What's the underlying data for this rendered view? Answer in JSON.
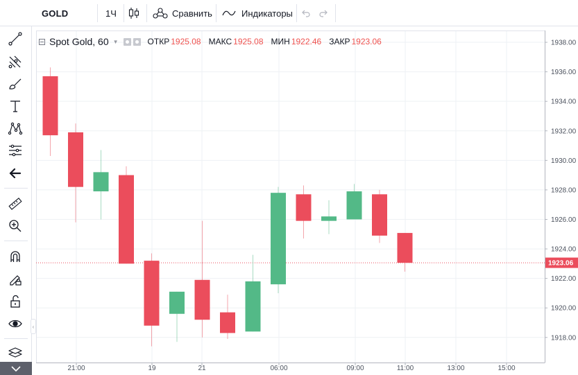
{
  "toolbar": {
    "symbol": "GOLD",
    "interval": "1Ч",
    "compare_label": "Сравнить",
    "indicators_label": "Индикаторы",
    "undo_icon": "undo-icon",
    "redo_icon": "redo-icon"
  },
  "left_tools": [
    {
      "name": "crosshair-icon"
    },
    {
      "name": "trend-line-icon"
    },
    {
      "name": "pitchfork-icon"
    },
    {
      "name": "brush-icon"
    },
    {
      "name": "text-icon"
    },
    {
      "name": "pattern-icon"
    },
    {
      "name": "prediction-icon"
    },
    {
      "name": "back-arrow-icon"
    },
    {
      "name": "ruler-icon"
    },
    {
      "name": "zoom-in-icon"
    },
    {
      "name": "magnet-icon"
    },
    {
      "name": "lock-drawing-icon"
    },
    {
      "name": "unlock-icon"
    },
    {
      "name": "eye-icon"
    },
    {
      "name": "layers-icon"
    }
  ],
  "legend": {
    "title": "Spot Gold, 60",
    "open_label": "ОТКР",
    "open_value": "1925.08",
    "high_label": "МАКС",
    "high_value": "1925.08",
    "low_label": "МИН",
    "low_value": "1922.46",
    "close_label": "ЗАКР",
    "close_value": "1923.06"
  },
  "colors": {
    "up": "#53b987",
    "down": "#eb4d5c",
    "price_line": "#eb4d5c",
    "grid": "#eef1f4",
    "axis_text": "#4c525e"
  },
  "chart_data": {
    "type": "candlestick",
    "symbol": "Spot Gold",
    "interval": "60",
    "x_tick_labels": [
      "21:00",
      "19",
      "21",
      "06:00",
      "09:00",
      "11:00",
      "13:00",
      "15:00"
    ],
    "y_tick_labels": [
      "1918.00",
      "1920.00",
      "1922.00",
      "1924.00",
      "1926.00",
      "1928.00",
      "1930.00",
      "1932.00",
      "1934.00",
      "1936.00",
      "1938.00"
    ],
    "ylim": [
      1916.3,
      1938.8
    ],
    "last_price_label": "1923.06",
    "last_price": 1923.06,
    "candles": [
      {
        "o": 1935.7,
        "h": 1936.3,
        "l": 1930.3,
        "c": 1931.7
      },
      {
        "o": 1931.9,
        "h": 1932.5,
        "l": 1925.8,
        "c": 1928.2
      },
      {
        "o": 1927.9,
        "h": 1930.7,
        "l": 1926.0,
        "c": 1929.2
      },
      {
        "o": 1929.0,
        "h": 1929.6,
        "l": 1923.0,
        "c": 1923.0
      },
      {
        "o": 1923.2,
        "h": 1923.7,
        "l": 1917.4,
        "c": 1918.8
      },
      {
        "o": 1919.6,
        "h": 1921.1,
        "l": 1917.7,
        "c": 1921.1
      },
      {
        "o": 1921.9,
        "h": 1925.9,
        "l": 1918.0,
        "c": 1919.2
      },
      {
        "o": 1919.7,
        "h": 1920.9,
        "l": 1917.9,
        "c": 1918.3
      },
      {
        "o": 1918.4,
        "h": 1923.6,
        "l": 1918.4,
        "c": 1921.8
      },
      {
        "o": 1921.6,
        "h": 1928.2,
        "l": 1921.0,
        "c": 1927.8
      },
      {
        "o": 1927.7,
        "h": 1928.3,
        "l": 1924.7,
        "c": 1925.9
      },
      {
        "o": 1925.9,
        "h": 1927.3,
        "l": 1925.0,
        "c": 1926.2
      },
      {
        "o": 1926.0,
        "h": 1928.4,
        "l": 1926.0,
        "c": 1927.9
      },
      {
        "o": 1927.7,
        "h": 1928.0,
        "l": 1924.4,
        "c": 1924.9
      },
      {
        "o": 1925.08,
        "h": 1925.08,
        "l": 1922.46,
        "c": 1923.06
      }
    ]
  }
}
